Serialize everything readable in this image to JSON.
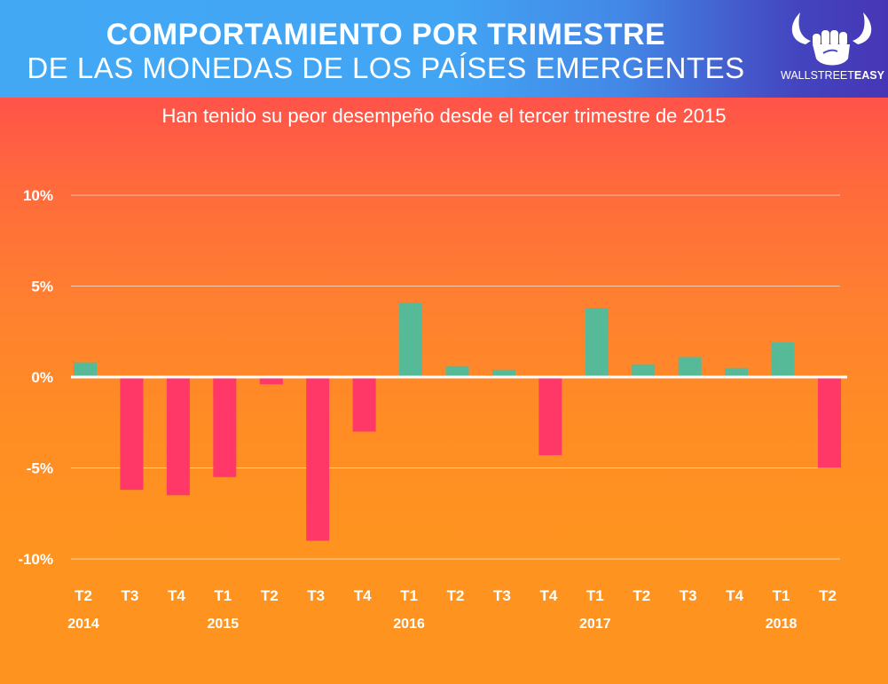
{
  "header": {
    "title_line1": "COMPORTAMIENTO POR TRIMESTRE",
    "title_line2": "DE LAS MONEDAS  DE LOS PAÍSES EMERGENTES",
    "logo_text_light": "WALLSTREET",
    "logo_text_bold": "EASY",
    "logo_icon": "bull-fist-icon"
  },
  "colors": {
    "positive": "#56b998",
    "negative": "#ff3868",
    "gridline": "#ffffff"
  },
  "chart_data": {
    "type": "bar",
    "title": "COMPORTAMIENTO POR TRIMESTRE DE LAS MONEDAS DE LOS PAÍSES EMERGENTES",
    "subtitle": "Han tenido su peor desempeño desde el tercer trimestre de 2015",
    "xlabel": "",
    "ylabel": "",
    "ylim": [
      -10,
      10
    ],
    "yticks": [
      10,
      5,
      0,
      -5,
      -10
    ],
    "ytick_labels": [
      "10%",
      "5%",
      "0%",
      "-5%",
      "-10%"
    ],
    "grid": true,
    "legend": "none",
    "categories": [
      "T2",
      "T3",
      "T4",
      "T1",
      "T2",
      "T3",
      "T4",
      "T1",
      "T2",
      "T3",
      "T4",
      "T1",
      "T2",
      "T3",
      "T4",
      "T1",
      "T2"
    ],
    "years": [
      {
        "label": "2014",
        "index": 0
      },
      {
        "label": "2015",
        "index": 3
      },
      {
        "label": "2016",
        "index": 7
      },
      {
        "label": "2017",
        "index": 11
      },
      {
        "label": "2018",
        "index": 15
      }
    ],
    "values": [
      0.8,
      -6.2,
      -6.5,
      -5.5,
      -0.4,
      -9.0,
      -3.0,
      4.1,
      0.6,
      0.4,
      -4.3,
      3.8,
      0.7,
      1.1,
      0.5,
      1.9,
      -5.0
    ]
  }
}
